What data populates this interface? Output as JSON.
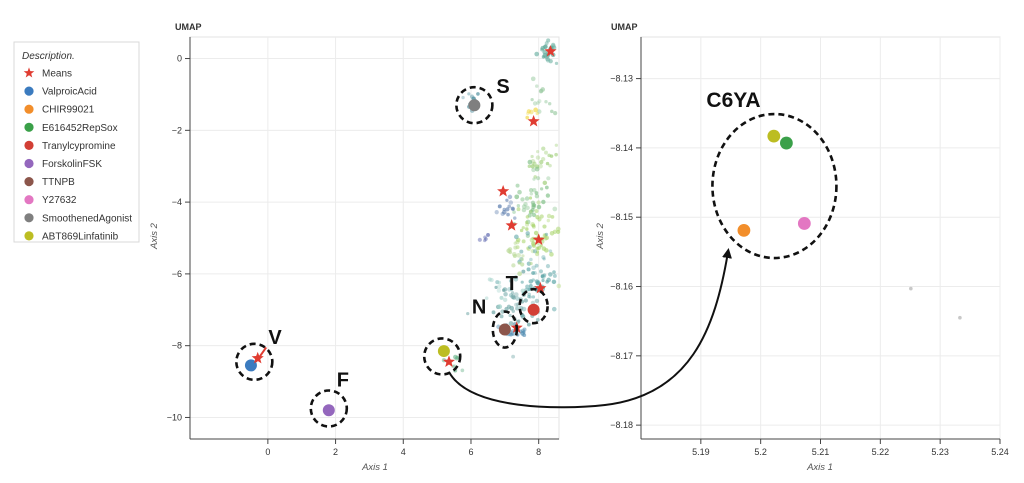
{
  "legend": {
    "title": "Description.",
    "entries": [
      {
        "label": "Means",
        "color": "#e03c31",
        "marker": "star"
      },
      {
        "label": "ValproicAcid",
        "color": "#3b7bbf",
        "marker": "circle"
      },
      {
        "label": "CHIR99021",
        "color": "#f28e2b",
        "marker": "circle"
      },
      {
        "label": "E616452RepSox",
        "color": "#3aa049",
        "marker": "circle"
      },
      {
        "label": "Tranylcypromine",
        "color": "#d23f35",
        "marker": "circle"
      },
      {
        "label": "ForskolinFSK",
        "color": "#9467bd",
        "marker": "circle"
      },
      {
        "label": "TTNPB",
        "color": "#8c564b",
        "marker": "circle"
      },
      {
        "label": "Y27632",
        "color": "#e377c2",
        "marker": "circle"
      },
      {
        "label": "SmoothenedAgonist",
        "color": "#7f7f7f",
        "marker": "circle"
      },
      {
        "label": "ABT869Linfatinib",
        "color": "#bcbd22",
        "marker": "circle"
      }
    ]
  },
  "chart_data": [
    {
      "type": "scatter",
      "title": "UMAP",
      "xlabel": "Axis 1",
      "ylabel": "Axis 2",
      "xlim": [
        -2.3,
        8.6
      ],
      "ylim": [
        -10.6,
        0.6
      ],
      "xticks": [
        0,
        2,
        4,
        6,
        8
      ],
      "yticks": [
        0,
        -2,
        -4,
        -6,
        -8,
        -10
      ],
      "grid": true,
      "points": [
        {
          "name": "ValproicAcid",
          "x": -0.5,
          "y": -8.55
        },
        {
          "name": "ForskolinFSK",
          "x": 1.8,
          "y": -9.8
        },
        {
          "name": "SmoothenedAgonist",
          "x": 6.1,
          "y": -1.3
        },
        {
          "name": "TTNPB",
          "x": 7.0,
          "y": -7.55
        },
        {
          "name": "Tranylcypromine",
          "x": 7.85,
          "y": -7.0
        },
        {
          "name": "ABT869Linfatinib",
          "x": 5.2,
          "y": -8.15
        }
      ],
      "means": [
        {
          "x": -0.3,
          "y": -8.35
        },
        {
          "x": 5.35,
          "y": -8.45
        },
        {
          "x": 7.85,
          "y": -1.75
        },
        {
          "x": 6.95,
          "y": -3.7
        },
        {
          "x": 7.2,
          "y": -4.65
        },
        {
          "x": 8.0,
          "y": -5.05
        },
        {
          "x": 8.05,
          "y": -6.4
        },
        {
          "x": 7.35,
          "y": -7.5
        },
        {
          "x": 8.35,
          "y": 0.2
        }
      ],
      "annotations": [
        {
          "label": "S",
          "x": 6.1,
          "y": -1.3
        },
        {
          "label": "V",
          "x": -0.4,
          "y": -8.45
        },
        {
          "label": "F",
          "x": 1.8,
          "y": -9.75
        },
        {
          "label": "N",
          "x": 7.0,
          "y": -7.55
        },
        {
          "label": "T",
          "x": 7.85,
          "y": -6.9
        },
        {
          "label": "",
          "x": 5.15,
          "y": -8.3
        }
      ]
    },
    {
      "type": "scatter",
      "title": "UMAP",
      "xlabel": "Axis 1",
      "ylabel": "Axis 2",
      "xlim": [
        5.18,
        5.24
      ],
      "ylim": [
        -8.182,
        -8.124
      ],
      "xticks": [
        5.19,
        5.2,
        5.21,
        5.22,
        5.23,
        5.24
      ],
      "yticks": [
        -8.13,
        -8.14,
        -8.15,
        -8.16,
        -8.17,
        -8.18
      ],
      "grid": true,
      "points": [
        {
          "name": "ABT869Linfatinib",
          "x": 5.2022,
          "y": -8.1383
        },
        {
          "name": "E616452RepSox",
          "x": 5.2043,
          "y": -8.1393
        },
        {
          "name": "CHIR99021",
          "x": 5.1972,
          "y": -8.1519
        },
        {
          "name": "Y27632",
          "x": 5.2073,
          "y": -8.1509
        }
      ],
      "faint_points": [
        {
          "x": 5.2251,
          "y": -8.1603
        },
        {
          "x": 5.2333,
          "y": -8.1645
        }
      ],
      "annotations": [
        {
          "label": "C6YA",
          "x": 5.2023,
          "y": -8.1455
        }
      ]
    }
  ]
}
